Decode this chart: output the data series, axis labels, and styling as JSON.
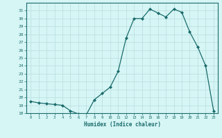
{
  "x": [
    0,
    1,
    2,
    3,
    4,
    5,
    6,
    7,
    8,
    9,
    10,
    11,
    12,
    13,
    14,
    15,
    16,
    17,
    18,
    19,
    20,
    21,
    22,
    23
  ],
  "y": [
    19.5,
    19.3,
    19.2,
    19.1,
    19.0,
    18.3,
    17.9,
    17.8,
    19.7,
    20.5,
    21.3,
    23.3,
    27.5,
    30.0,
    30.0,
    31.2,
    30.7,
    30.2,
    31.2,
    30.8,
    28.3,
    26.4,
    24.0,
    18.3
  ],
  "xlabel": "Humidex (Indice chaleur)",
  "ylim": [
    18,
    32
  ],
  "xlim": [
    -0.5,
    23.5
  ],
  "yticks": [
    18,
    19,
    20,
    21,
    22,
    23,
    24,
    25,
    26,
    27,
    28,
    29,
    30,
    31
  ],
  "xticks": [
    0,
    1,
    2,
    3,
    4,
    5,
    6,
    7,
    8,
    9,
    10,
    11,
    12,
    13,
    14,
    15,
    16,
    17,
    18,
    19,
    20,
    21,
    22,
    23
  ],
  "line_color": "#1a6b6b",
  "marker_color": "#1a6b6b",
  "bg_color": "#d6f5f5",
  "grid_color": "#b8dede",
  "axes_color": "#1a6b6b",
  "tick_color": "#1a6b6b",
  "label_color": "#1a6b6b"
}
